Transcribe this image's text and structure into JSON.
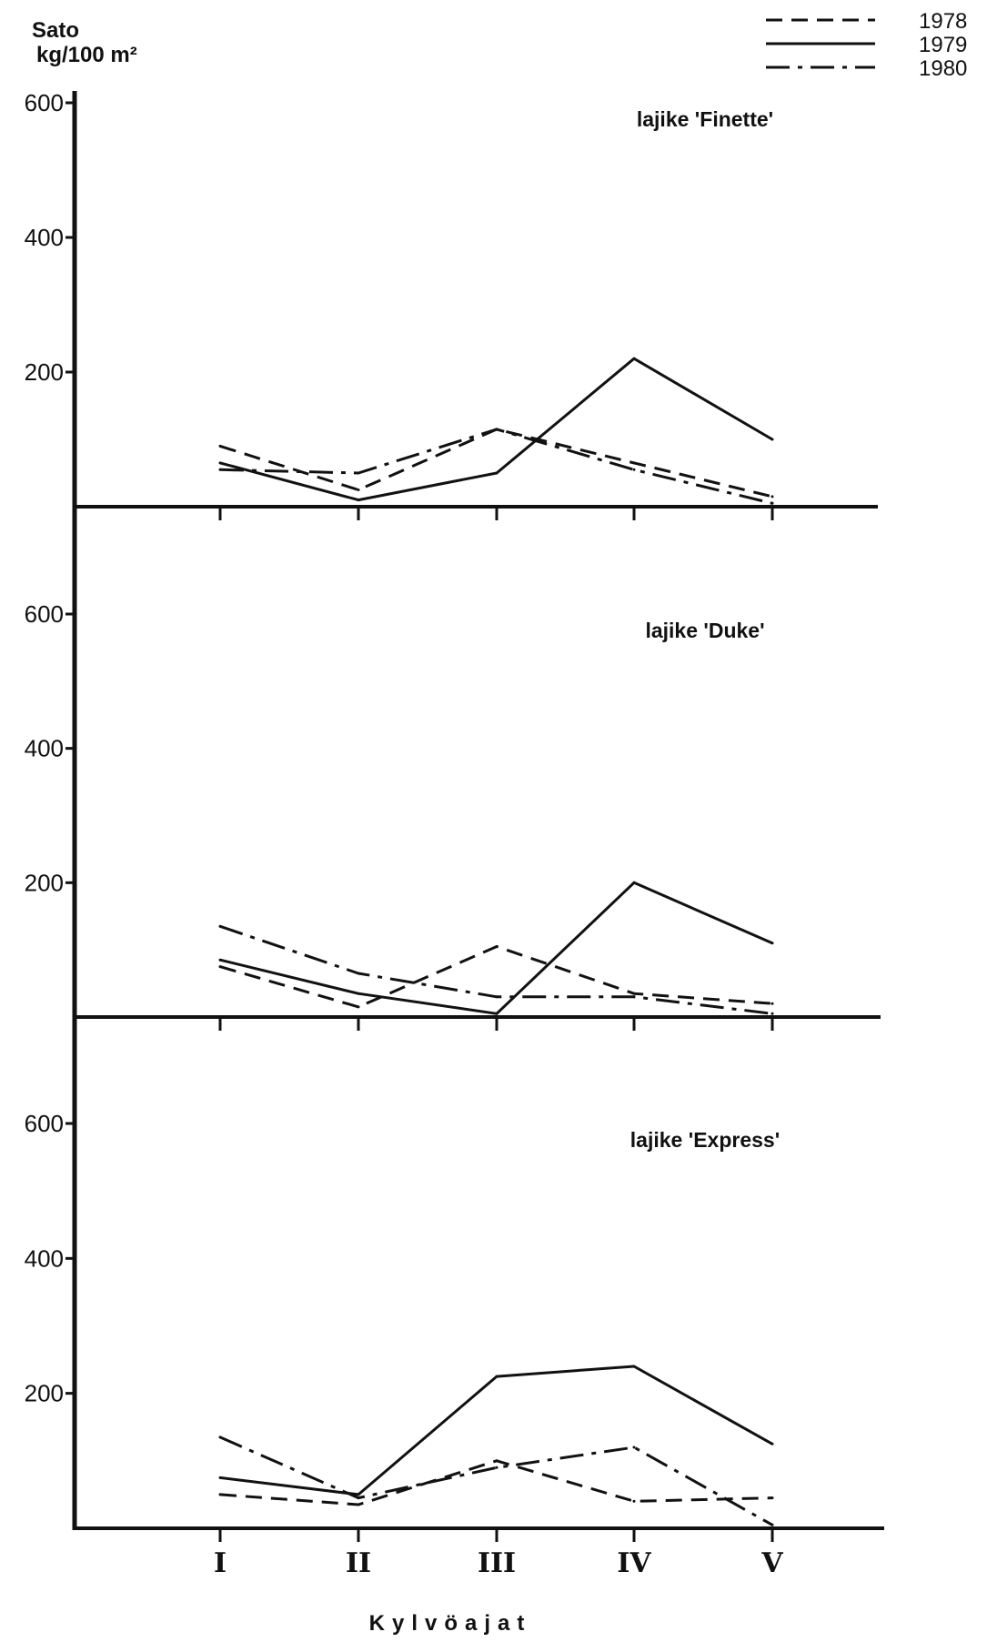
{
  "chart_data": {
    "type": "line",
    "ylabel_line1": "Sato",
    "ylabel_line2": "kg/100 m²",
    "xlabel": "Kylvöajat",
    "categories": [
      "I",
      "II",
      "III",
      "IV",
      "V"
    ],
    "yticks": [
      200,
      400,
      600
    ],
    "ylim": [
      0,
      600
    ],
    "grid": false,
    "legend_position": "top-right",
    "legend": [
      {
        "name": "1978",
        "dash": "dashed"
      },
      {
        "name": "1979",
        "dash": "solid"
      },
      {
        "name": "1980",
        "dash": "dashdot"
      }
    ],
    "panels": [
      {
        "title": "lajike 'Finette'",
        "series": [
          {
            "name": "1978",
            "values": [
              90,
              25,
              115,
              65,
              15
            ]
          },
          {
            "name": "1979",
            "values": [
              65,
              10,
              50,
              220,
              100
            ]
          },
          {
            "name": "1980",
            "values": [
              55,
              50,
              115,
              55,
              5
            ]
          }
        ]
      },
      {
        "title": "lajike 'Duke'",
        "series": [
          {
            "name": "1978",
            "values": [
              75,
              15,
              105,
              35,
              20
            ]
          },
          {
            "name": "1979",
            "values": [
              85,
              35,
              5,
              200,
              110
            ]
          },
          {
            "name": "1980",
            "values": [
              135,
              65,
              30,
              30,
              5
            ]
          }
        ]
      },
      {
        "title": "lajike 'Express'",
        "series": [
          {
            "name": "1978",
            "values": [
              50,
              35,
              100,
              40,
              45
            ]
          },
          {
            "name": "1979",
            "values": [
              75,
              50,
              225,
              240,
              125
            ]
          },
          {
            "name": "1980",
            "values": [
              135,
              45,
              90,
              120,
              5
            ]
          }
        ]
      }
    ]
  }
}
